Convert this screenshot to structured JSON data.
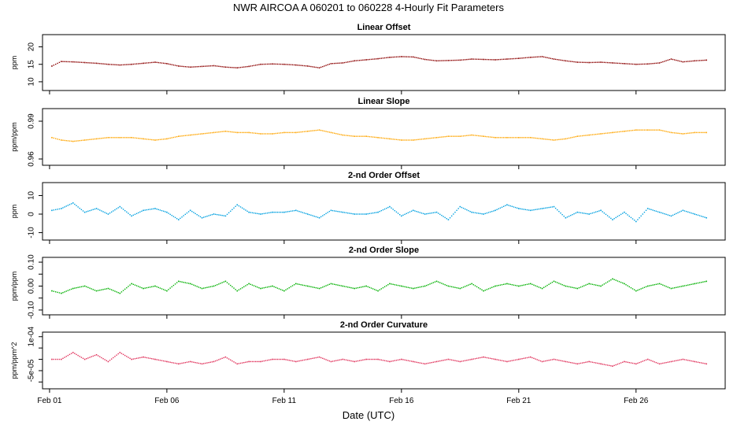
{
  "title": "NWR   AIRCOA A   060201 to 060228   4-Hourly Fit Parameters",
  "xlabel": "Date (UTC)",
  "x_ticks": [
    "Feb 01",
    "Feb 06",
    "Feb 11",
    "Feb 16",
    "Feb 21",
    "Feb 26"
  ],
  "chart_data": [
    {
      "type": "scatter",
      "title": "Linear Offset",
      "ylabel": "ppm",
      "color": "#8b0000",
      "xlim": [
        0.7,
        29.8
      ],
      "ylim": [
        7.5,
        23.5
      ],
      "yticks": [
        10,
        15,
        20
      ],
      "ytick_labels": [
        "10",
        "15",
        "20"
      ],
      "x": [
        1.1,
        1.5,
        2,
        2.5,
        3,
        3.5,
        4,
        4.5,
        5,
        5.5,
        6,
        6.5,
        7,
        7.5,
        8,
        8.5,
        9,
        9.5,
        10,
        10.5,
        11,
        11.5,
        12,
        12.5,
        13,
        13.5,
        14,
        14.5,
        15,
        15.5,
        16,
        16.5,
        17,
        17.5,
        18,
        18.5,
        19,
        19.5,
        20,
        20.5,
        21,
        21.5,
        22,
        22.5,
        23,
        23.5,
        24,
        24.5,
        25,
        25.5,
        26,
        26.5,
        27,
        27.5,
        28,
        28.5,
        29
      ],
      "y": [
        14.5,
        15.8,
        15.7,
        15.5,
        15.3,
        15.0,
        14.8,
        15.0,
        15.3,
        15.6,
        15.2,
        14.5,
        14.2,
        14.4,
        14.6,
        14.2,
        14.0,
        14.4,
        15.0,
        15.1,
        15.0,
        14.8,
        14.5,
        14.0,
        15.2,
        15.4,
        16.0,
        16.3,
        16.6,
        17.0,
        17.2,
        17.1,
        16.4,
        16.0,
        16.1,
        16.2,
        16.5,
        16.4,
        16.3,
        16.5,
        16.7,
        17.0,
        17.2,
        16.5,
        16.0,
        15.6,
        15.5,
        15.6,
        15.4,
        15.2,
        15.0,
        15.1,
        15.4,
        16.5,
        15.7,
        16.0,
        16.2
      ]
    },
    {
      "type": "scatter",
      "title": "Linear Slope",
      "ylabel": "ppm/ppm",
      "color": "#ffa500",
      "xlim": [
        0.7,
        29.8
      ],
      "ylim": [
        0.955,
        1.0
      ],
      "yticks": [
        0.96,
        0.99
      ],
      "ytick_labels": [
        "0.96",
        "0.99"
      ],
      "x": [
        1.1,
        1.5,
        2,
        2.5,
        3,
        3.5,
        4,
        4.5,
        5,
        5.5,
        6,
        6.5,
        7,
        7.5,
        8,
        8.5,
        9,
        9.5,
        10,
        10.5,
        11,
        11.5,
        12,
        12.5,
        13,
        13.5,
        14,
        14.5,
        15,
        15.5,
        16,
        16.5,
        17,
        17.5,
        18,
        18.5,
        19,
        19.5,
        20,
        20.5,
        21,
        21.5,
        22,
        22.5,
        23,
        23.5,
        24,
        24.5,
        25,
        25.5,
        26,
        26.5,
        27,
        27.5,
        28,
        28.5,
        29
      ],
      "y": [
        0.977,
        0.975,
        0.974,
        0.975,
        0.976,
        0.977,
        0.977,
        0.977,
        0.976,
        0.975,
        0.976,
        0.978,
        0.979,
        0.98,
        0.981,
        0.982,
        0.981,
        0.981,
        0.98,
        0.98,
        0.981,
        0.981,
        0.982,
        0.983,
        0.981,
        0.979,
        0.978,
        0.978,
        0.977,
        0.976,
        0.975,
        0.975,
        0.976,
        0.977,
        0.978,
        0.978,
        0.979,
        0.978,
        0.977,
        0.977,
        0.977,
        0.977,
        0.976,
        0.975,
        0.976,
        0.978,
        0.979,
        0.98,
        0.981,
        0.982,
        0.983,
        0.983,
        0.983,
        0.981,
        0.98,
        0.981,
        0.981
      ]
    },
    {
      "type": "scatter",
      "title": "2-nd Order Offset",
      "ylabel": "ppm",
      "color": "#00a0e0",
      "xlim": [
        0.7,
        29.8
      ],
      "ylim": [
        -14,
        17
      ],
      "yticks": [
        -10,
        0,
        10
      ],
      "ytick_labels": [
        "-10",
        "0",
        "10"
      ],
      "x": [
        1.1,
        1.5,
        2,
        2.5,
        3,
        3.5,
        4,
        4.5,
        5,
        5.5,
        6,
        6.5,
        7,
        7.5,
        8,
        8.5,
        9,
        9.5,
        10,
        10.5,
        11,
        11.5,
        12,
        12.5,
        13,
        13.5,
        14,
        14.5,
        15,
        15.5,
        16,
        16.5,
        17,
        17.5,
        18,
        18.5,
        19,
        19.5,
        20,
        20.5,
        21,
        21.5,
        22,
        22.5,
        23,
        23.5,
        24,
        24.5,
        25,
        25.5,
        26,
        26.5,
        27,
        27.5,
        28,
        28.5,
        29
      ],
      "y": [
        2,
        3,
        6,
        1,
        3,
        0,
        4,
        -1,
        2,
        3,
        1,
        -3,
        2,
        -2,
        0,
        -1,
        5,
        1,
        0,
        1,
        1,
        2,
        0,
        -2,
        2,
        1,
        0,
        0,
        1,
        4,
        -1,
        2,
        0,
        1,
        -3,
        4,
        1,
        0,
        2,
        5,
        3,
        2,
        3,
        4,
        -2,
        1,
        0,
        2,
        -3,
        1,
        -4,
        3,
        1,
        -1,
        2,
        0,
        -2
      ]
    },
    {
      "type": "scatter",
      "title": "2-nd Order Slope",
      "ylabel": "ppm/ppm",
      "color": "#00b000",
      "xlim": [
        0.7,
        29.8
      ],
      "ylim": [
        -0.12,
        0.12
      ],
      "yticks": [
        -0.1,
        -0.05,
        0.0,
        0.05,
        0.1
      ],
      "ytick_labels": [
        "-0.10",
        "",
        "0.00",
        "",
        "0.10"
      ],
      "x": [
        1.1,
        1.5,
        2,
        2.5,
        3,
        3.5,
        4,
        4.5,
        5,
        5.5,
        6,
        6.5,
        7,
        7.5,
        8,
        8.5,
        9,
        9.5,
        10,
        10.5,
        11,
        11.5,
        12,
        12.5,
        13,
        13.5,
        14,
        14.5,
        15,
        15.5,
        16,
        16.5,
        17,
        17.5,
        18,
        18.5,
        19,
        19.5,
        20,
        20.5,
        21,
        21.5,
        22,
        22.5,
        23,
        23.5,
        24,
        24.5,
        25,
        25.5,
        26,
        26.5,
        27,
        27.5,
        28,
        28.5,
        29
      ],
      "y": [
        -0.02,
        -0.03,
        -0.01,
        0.0,
        -0.02,
        -0.01,
        -0.03,
        0.01,
        -0.01,
        0.0,
        -0.02,
        0.02,
        0.01,
        -0.01,
        0.0,
        0.02,
        -0.02,
        0.01,
        -0.01,
        0.0,
        -0.02,
        0.01,
        0.0,
        -0.01,
        0.01,
        0.0,
        -0.01,
        0.0,
        -0.02,
        0.01,
        0.0,
        -0.01,
        0.0,
        0.02,
        0.0,
        -0.01,
        0.01,
        -0.02,
        0.0,
        0.01,
        0.0,
        0.01,
        -0.01,
        0.02,
        0.0,
        -0.01,
        0.01,
        0.0,
        0.03,
        0.01,
        -0.02,
        0.0,
        0.01,
        -0.01,
        0.0,
        0.01,
        0.02
      ]
    },
    {
      "type": "scatter",
      "title": "2-nd Order Curvature",
      "ylabel": "ppm/ppm^2",
      "color": "#e0305a",
      "xlim": [
        0.7,
        29.8
      ],
      "ylim": [
        -0.00013,
        0.00012
      ],
      "yticks": [
        -0.0001,
        -5e-05,
        0,
        5e-05,
        0.0001
      ],
      "ytick_labels": [
        "",
        "-5e-05",
        "",
        "",
        "1e-04"
      ],
      "x": [
        1.1,
        1.5,
        2,
        2.5,
        3,
        3.5,
        4,
        4.5,
        5,
        5.5,
        6,
        6.5,
        7,
        7.5,
        8,
        8.5,
        9,
        9.5,
        10,
        10.5,
        11,
        11.5,
        12,
        12.5,
        13,
        13.5,
        14,
        14.5,
        15,
        15.5,
        16,
        16.5,
        17,
        17.5,
        18,
        18.5,
        19,
        19.5,
        20,
        20.5,
        21,
        21.5,
        22,
        22.5,
        23,
        23.5,
        24,
        24.5,
        25,
        25.5,
        26,
        26.5,
        27,
        27.5,
        28,
        28.5,
        29
      ],
      "y": [
        0.0,
        0.0,
        3e-05,
        0.0,
        2e-05,
        -1e-05,
        3e-05,
        0.0,
        1e-05,
        0.0,
        -1e-05,
        -2e-05,
        -1e-05,
        -2e-05,
        -1e-05,
        1e-05,
        -2e-05,
        -1e-05,
        -1e-05,
        0.0,
        0.0,
        -1e-05,
        0.0,
        1e-05,
        -1e-05,
        0.0,
        -1e-05,
        0.0,
        0.0,
        -1e-05,
        0.0,
        -1e-05,
        -2e-05,
        -1e-05,
        0.0,
        -1e-05,
        0.0,
        1e-05,
        0.0,
        -1e-05,
        0.0,
        1e-05,
        -1e-05,
        0.0,
        -1e-05,
        -2e-05,
        -1e-05,
        -2e-05,
        -3e-05,
        -1e-05,
        -2e-05,
        0.0,
        -2e-05,
        -1e-05,
        0.0,
        -1e-05,
        -2e-05
      ]
    }
  ]
}
